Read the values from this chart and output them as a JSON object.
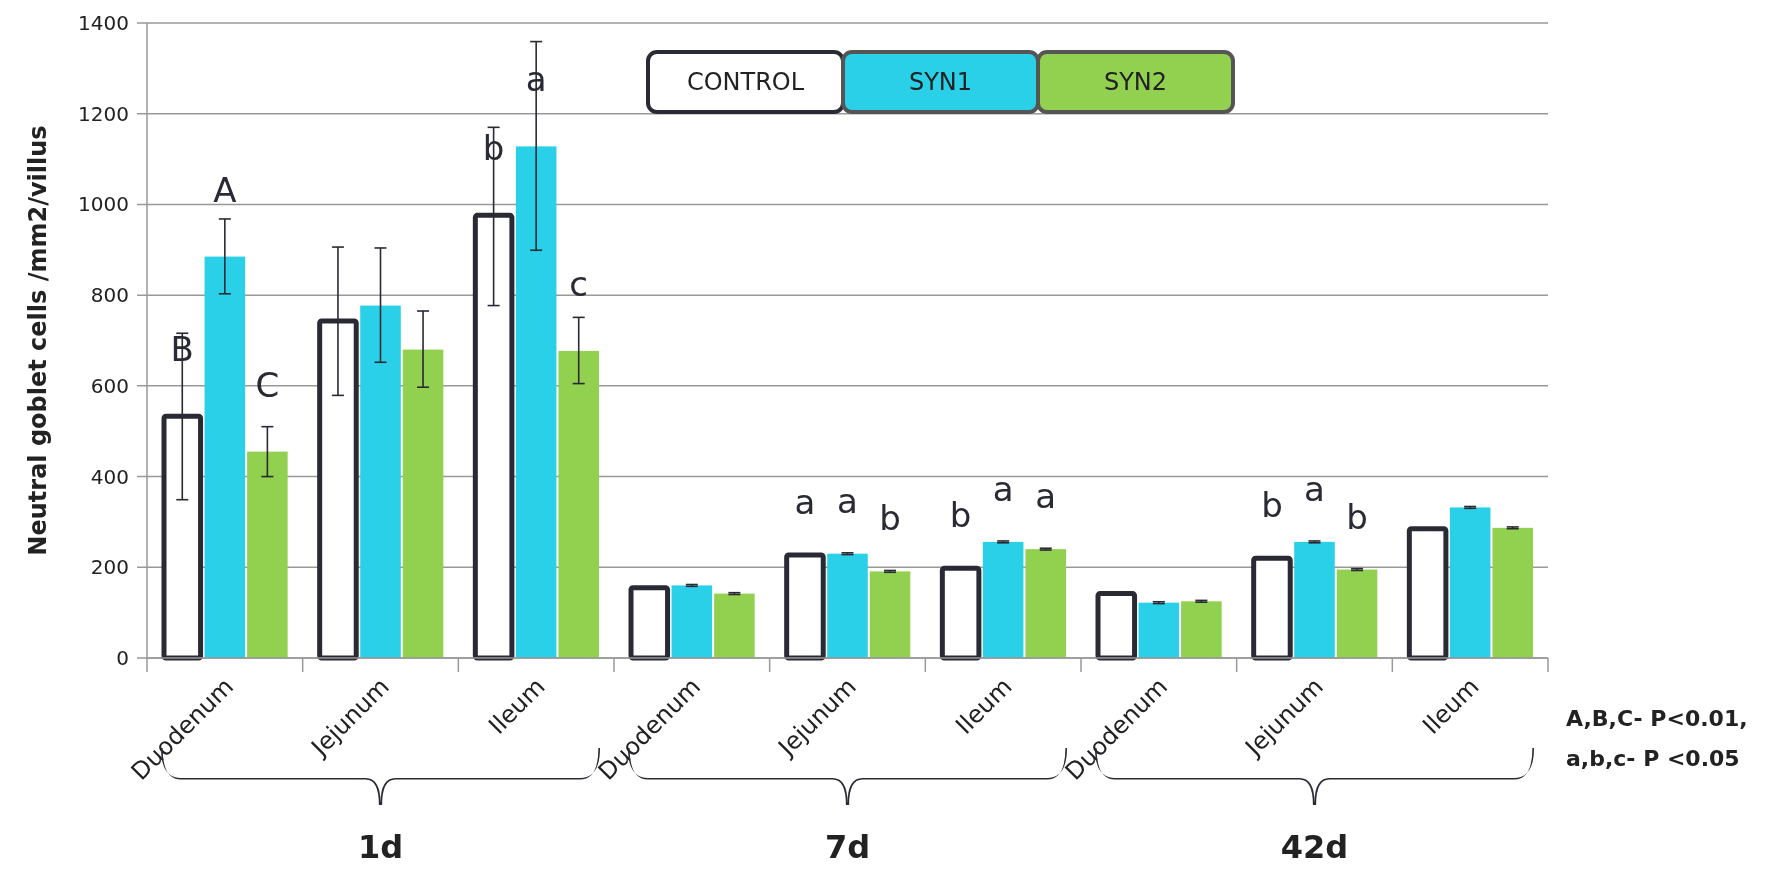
{
  "chart_data": {
    "type": "bar",
    "ylabel": "Neutral goblet cells /mm2/villus",
    "categories": [
      "Duodenum",
      "Jejunum",
      "Ileum",
      "Duodenum",
      "Jejunum",
      "Ileum",
      "Duodenum",
      "Jejunum",
      "Ileum"
    ],
    "series": [
      {
        "name": "CONTROL",
        "color": "#ffffff",
        "values": [
          533,
          743,
          976,
          155,
          227,
          198,
          142,
          220,
          285
        ],
        "errors": [
          [
            349,
            716
          ],
          [
            579,
            906
          ],
          [
            777,
            1170
          ],
          2,
          2,
          2,
          2,
          2,
          2
        ],
        "value_labels": [
          "B",
          null,
          "b",
          null,
          "a",
          "b",
          null,
          "b",
          null
        ]
      },
      {
        "name": "SYN1",
        "color": "#29d0e8",
        "values": [
          885,
          777,
          1128,
          160,
          230,
          256,
          122,
          256,
          332
        ],
        "errors": [
          [
            803,
            968
          ],
          [
            652,
            904
          ],
          [
            899,
            1359
          ],
          2,
          2,
          2,
          2,
          2,
          2
        ],
        "value_labels": [
          "A",
          null,
          "a",
          null,
          "a",
          "a",
          null,
          "a",
          null
        ]
      },
      {
        "name": "SYN2",
        "color": "#92d050",
        "values": [
          455,
          680,
          677,
          142,
          191,
          240,
          125,
          195,
          287
        ],
        "errors": [
          [
            400,
            510
          ],
          [
            597,
            765
          ],
          [
            605,
            751
          ],
          2,
          2,
          2,
          2,
          2,
          2
        ],
        "value_labels": [
          "C",
          null,
          "c",
          null,
          "b",
          "a",
          null,
          "b",
          null
        ]
      }
    ],
    "ylim": [
      0,
      1400
    ],
    "yticks": [
      0,
      200,
      400,
      600,
      800,
      1000,
      1200,
      1400
    ],
    "grid": "y",
    "legend": "top",
    "annotations": [
      "1d",
      "7d",
      "42d",
      "A,B,C- P<0.01,\na,b,c- P <0.05"
    ]
  }
}
